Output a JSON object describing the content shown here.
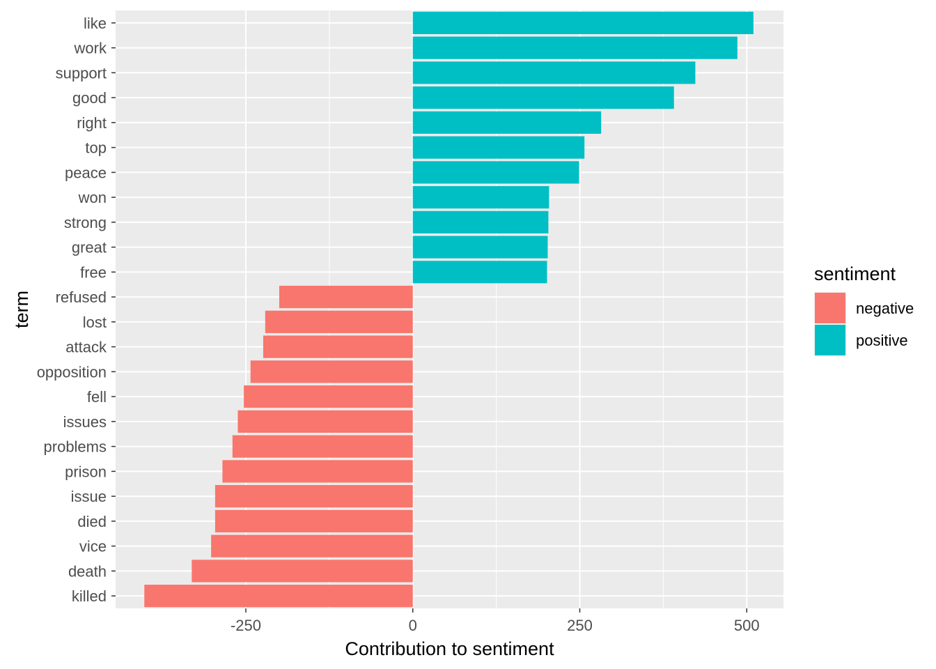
{
  "chart_data": {
    "type": "bar",
    "orientation": "horizontal",
    "title": "",
    "xlabel": "Contribution to sentiment",
    "ylabel": "term",
    "xlim": [
      -445,
      555
    ],
    "xticks": [
      -250,
      0,
      250,
      500
    ],
    "xtick_labels": [
      "-250",
      "0",
      "250",
      "500"
    ],
    "grid": true,
    "legend": {
      "title": "sentiment",
      "position": "right",
      "entries": [
        {
          "label": "negative",
          "color": "#F8766D"
        },
        {
          "label": "positive",
          "color": "#00BFC4"
        }
      ]
    },
    "categories": [
      "like",
      "work",
      "support",
      "good",
      "right",
      "top",
      "peace",
      "won",
      "strong",
      "great",
      "free",
      "refused",
      "lost",
      "attack",
      "opposition",
      "fell",
      "issues",
      "problems",
      "prison",
      "issue",
      "died",
      "vice",
      "death",
      "killed"
    ],
    "values": [
      510,
      486,
      423,
      391,
      282,
      257,
      249,
      204,
      203,
      202,
      201,
      -200,
      -221,
      -224,
      -243,
      -253,
      -262,
      -270,
      -285,
      -296,
      -296,
      -302,
      -331,
      -402
    ],
    "sentiment": [
      "positive",
      "positive",
      "positive",
      "positive",
      "positive",
      "positive",
      "positive",
      "positive",
      "positive",
      "positive",
      "positive",
      "negative",
      "negative",
      "negative",
      "negative",
      "negative",
      "negative",
      "negative",
      "negative",
      "negative",
      "negative",
      "negative",
      "negative",
      "negative"
    ]
  }
}
